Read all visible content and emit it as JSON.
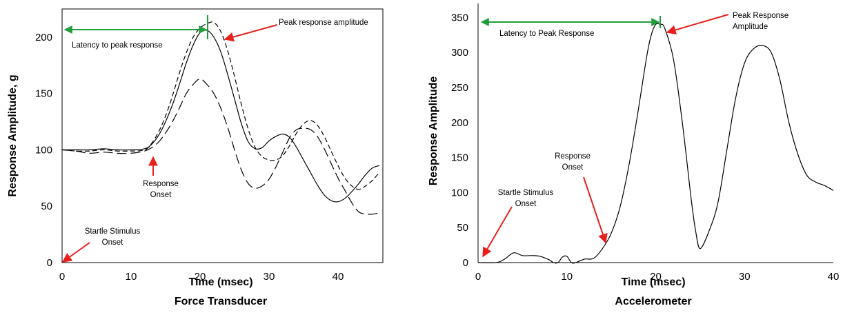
{
  "colors": {
    "annotation_arrow": "#e8201c",
    "latency_bar": "#1e9e3a",
    "line": "#000000"
  },
  "chart_data": [
    {
      "type": "line",
      "title": "Force Transducer",
      "xlabel": "Time (msec)",
      "ylabel": "Response Amplitude, g",
      "xlim": [
        0,
        46.5
      ],
      "ylim": [
        0,
        225
      ],
      "xticks": [
        0,
        10,
        20,
        30,
        40
      ],
      "yticks": [
        0,
        50,
        100,
        150,
        200
      ],
      "grid": false,
      "series": [
        {
          "style": "solid",
          "x": [
            0,
            2,
            4,
            6,
            8,
            10,
            12,
            13,
            14,
            15,
            16,
            17,
            18,
            19,
            20,
            21,
            22,
            23,
            24,
            25,
            26,
            27,
            28,
            29,
            30,
            31,
            32,
            33,
            34,
            35,
            36,
            37,
            38,
            39,
            40,
            41,
            42,
            43,
            44,
            45,
            46
          ],
          "y": [
            100,
            100,
            100,
            101,
            100,
            100,
            101,
            105,
            113,
            125,
            140,
            158,
            177,
            193,
            204,
            206,
            200,
            187,
            167,
            145,
            123,
            107,
            101,
            102,
            108,
            112,
            114,
            111,
            102,
            91,
            80,
            69,
            60,
            55,
            54,
            57,
            63,
            70,
            78,
            84,
            86
          ]
        },
        {
          "style": "dashed",
          "x": [
            0,
            2,
            4,
            6,
            8,
            10,
            12,
            13,
            14,
            15,
            16,
            17,
            18,
            19,
            20,
            21,
            22,
            23,
            24,
            25,
            26,
            27,
            28,
            29,
            30,
            31,
            32,
            33,
            34,
            35,
            36,
            37,
            38,
            39,
            40,
            41,
            42,
            43,
            44,
            45,
            46
          ],
          "y": [
            100,
            99,
            99,
            100,
            99,
            99,
            100,
            106,
            116,
            130,
            148,
            168,
            186,
            200,
            208,
            212,
            213,
            205,
            188,
            165,
            140,
            118,
            102,
            94,
            91,
            91,
            95,
            104,
            115,
            123,
            126,
            122,
            112,
            99,
            86,
            75,
            68,
            65,
            68,
            73,
            80
          ]
        },
        {
          "style": "long-dash",
          "x": [
            0,
            2,
            4,
            6,
            8,
            10,
            12,
            13,
            14,
            15,
            16,
            17,
            18,
            19,
            20,
            21,
            22,
            23,
            24,
            25,
            26,
            27,
            28,
            29,
            30,
            31,
            32,
            33,
            34,
            35,
            36,
            37,
            38,
            39,
            40,
            41,
            42,
            43,
            44,
            45,
            46
          ],
          "y": [
            100,
            99,
            97,
            98,
            97,
            97,
            99,
            102,
            107,
            115,
            125,
            137,
            150,
            158,
            163,
            158,
            150,
            137,
            120,
            100,
            82,
            70,
            66,
            68,
            74,
            85,
            98,
            111,
            118,
            119,
            118,
            112,
            101,
            88,
            75,
            64,
            53,
            45,
            43,
            43,
            44
          ]
        }
      ],
      "annotations": [
        {
          "lines": [
            "Peak response amplitude"
          ]
        },
        {
          "lines": [
            "Latency to peak response"
          ]
        },
        {
          "lines": [
            "Response",
            "Onset"
          ]
        },
        {
          "lines": [
            "Startle Stimulus",
            "Onset"
          ]
        }
      ]
    },
    {
      "type": "line",
      "title": "Accelerometer",
      "xlabel": "Time (msec)",
      "ylabel": "Response Amplitude",
      "xlim": [
        0,
        40
      ],
      "ylim": [
        0,
        370
      ],
      "xticks": [
        0,
        10,
        20,
        30,
        40
      ],
      "yticks": [
        0,
        50,
        100,
        150,
        200,
        250,
        300,
        350
      ],
      "grid": false,
      "series": [
        {
          "style": "solid",
          "x": [
            0,
            2,
            3,
            4,
            5,
            6,
            7,
            8,
            8.5,
            9,
            9.5,
            10,
            10.5,
            11,
            12,
            13,
            14,
            15,
            16,
            17,
            18,
            19,
            19.5,
            20,
            20.5,
            21,
            22,
            23,
            24,
            24.5,
            25,
            26,
            27,
            28,
            29,
            30,
            31,
            32,
            33,
            34,
            35,
            36,
            37,
            38,
            39,
            40
          ],
          "y": [
            0,
            0,
            5,
            14,
            10,
            10,
            9,
            4,
            0,
            0,
            8,
            9,
            0,
            0,
            5,
            6,
            20,
            42,
            80,
            140,
            215,
            295,
            325,
            340,
            340,
            335,
            290,
            200,
            90,
            45,
            20,
            45,
            85,
            160,
            235,
            285,
            305,
            310,
            300,
            260,
            200,
            155,
            125,
            115,
            110,
            103
          ]
        }
      ],
      "annotations": [
        {
          "lines": [
            "Peak Response",
            "Amplitude"
          ]
        },
        {
          "lines": [
            "Latency to Peak Response"
          ]
        },
        {
          "lines": [
            "Response",
            "Onset"
          ]
        },
        {
          "lines": [
            "Startle Stimulus",
            "Onset"
          ]
        }
      ]
    }
  ]
}
